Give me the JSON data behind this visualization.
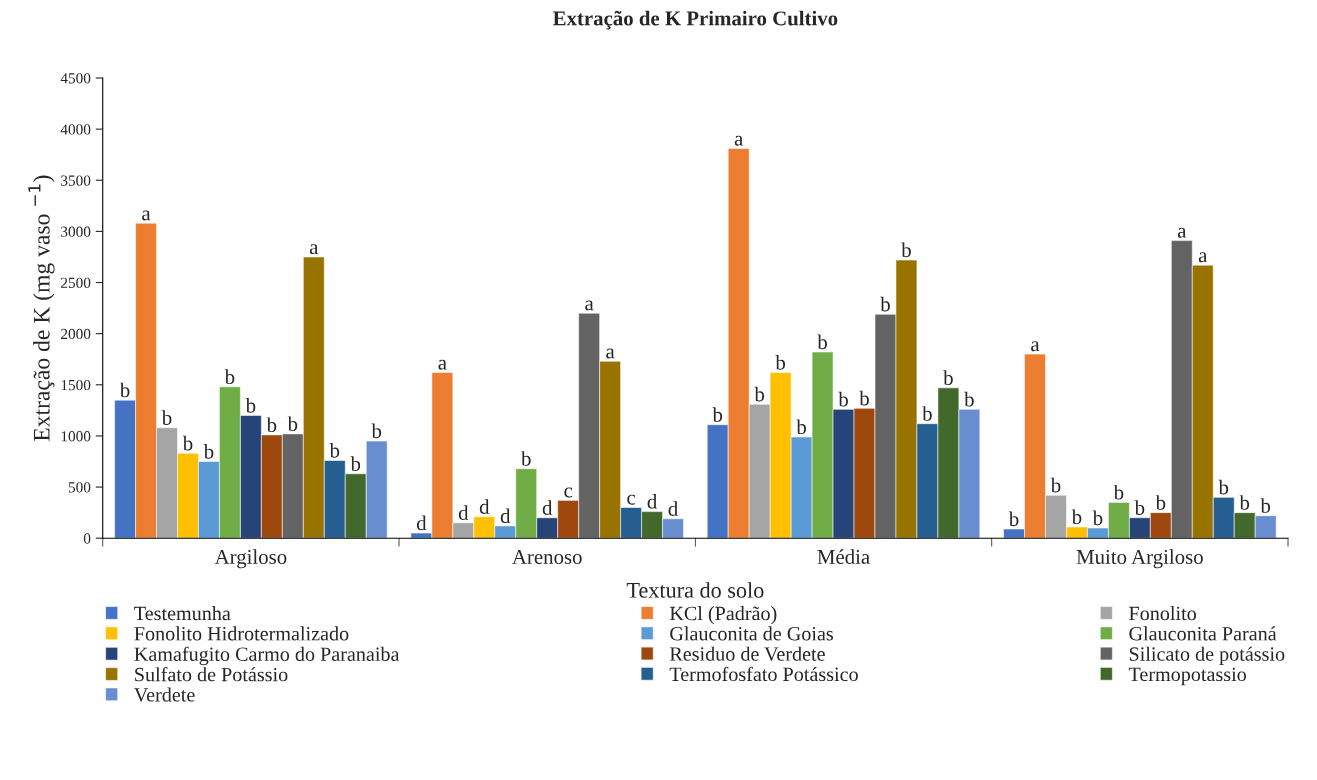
{
  "chart_data": {
    "type": "bar",
    "title": "Extração de K Primairo Cultivo",
    "xlabel": "Textura do solo",
    "ylabel": "Extração de K (mg vaso $^{−1}$)",
    "categories": [
      "Argiloso",
      "Arenoso",
      "Média",
      "Muito Argiloso"
    ],
    "ylim": [
      0,
      4500
    ],
    "yticks": [
      0,
      500,
      1000,
      1500,
      2000,
      2500,
      3000,
      3500,
      4000,
      4500
    ],
    "grid": false,
    "legend": "bottom",
    "series": [
      {
        "name": "Testemunha",
        "color": "#4472c4",
        "values": [
          1350,
          50,
          1110,
          90
        ],
        "value_labels": [
          "b",
          "d",
          "b",
          "b"
        ]
      },
      {
        "name": "KCl (Padrão)",
        "color": "#ed7d31",
        "values": [
          3080,
          1620,
          3810,
          1800
        ],
        "value_labels": [
          "a",
          "a",
          "a",
          "a"
        ]
      },
      {
        "name": "Fonolito",
        "color": "#a5a5a5",
        "values": [
          1080,
          150,
          1310,
          420
        ],
        "value_labels": [
          "b",
          "d",
          "b",
          "b"
        ]
      },
      {
        "name": "Fonolito Hidrotermalizado",
        "color": "#ffc000",
        "values": [
          830,
          210,
          1620,
          110
        ],
        "value_labels": [
          "b",
          "d",
          "b",
          "b"
        ]
      },
      {
        "name": "Glauconita de Goias",
        "color": "#5b9bd5",
        "values": [
          750,
          120,
          990,
          100
        ],
        "value_labels": [
          "b",
          "d",
          "b",
          "b"
        ]
      },
      {
        "name": "Glauconita Paraná",
        "color": "#70ad47",
        "values": [
          1480,
          680,
          1820,
          350
        ],
        "value_labels": [
          "b",
          "b",
          "b",
          "b"
        ]
      },
      {
        "name": "Kamafugito Carmo do Paranaiba",
        "color": "#264478",
        "values": [
          1200,
          200,
          1260,
          200
        ],
        "value_labels": [
          "b",
          "d",
          "b",
          "b"
        ]
      },
      {
        "name": "Residuo de Verdete",
        "color": "#9e480e",
        "values": [
          1010,
          370,
          1270,
          250
        ],
        "value_labels": [
          "b",
          "c",
          "b",
          "b"
        ]
      },
      {
        "name": "Silicato de potássio",
        "color": "#636363",
        "values": [
          1020,
          2200,
          2190,
          2910
        ],
        "value_labels": [
          "b",
          "a",
          "b",
          "a"
        ]
      },
      {
        "name": "Sulfato de Potássio",
        "color": "#997300",
        "values": [
          2750,
          1730,
          2720,
          2670
        ],
        "value_labels": [
          "a",
          "a",
          "b",
          "a"
        ]
      },
      {
        "name": "Termofosfato Potássico",
        "color": "#255e91",
        "values": [
          760,
          300,
          1120,
          400
        ],
        "value_labels": [
          "b",
          "c",
          "b",
          "b"
        ]
      },
      {
        "name": "Termopotassio",
        "color": "#43682b",
        "values": [
          630,
          260,
          1470,
          250
        ],
        "value_labels": [
          "b",
          "d",
          "b",
          "b"
        ]
      },
      {
        "name": "Verdete",
        "color": "#698ed0",
        "values": [
          950,
          190,
          1260,
          220
        ],
        "value_labels": [
          "b",
          "d",
          "b",
          "b"
        ]
      }
    ]
  }
}
